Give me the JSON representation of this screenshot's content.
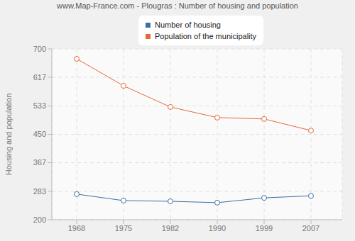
{
  "chart_data": {
    "type": "line",
    "title": "www.Map-France.com - Plougras : Number of housing and population",
    "y_label": "Housing and population",
    "categories": [
      "1968",
      "1975",
      "1982",
      "1990",
      "1999",
      "2007"
    ],
    "series": [
      {
        "name": "Number of housing",
        "color": "#3e6fa3",
        "values": [
          275,
          256,
          254,
          250,
          264,
          270
        ],
        "marker": "circle"
      },
      {
        "name": "Population of the municipality",
        "color": "#e2693a",
        "values": [
          671,
          592,
          530,
          499,
          495,
          461
        ],
        "marker": "circle"
      }
    ],
    "ylim": [
      200,
      700
    ],
    "yticks": [
      200,
      283,
      367,
      450,
      533,
      617,
      700
    ],
    "grid": true,
    "legend": "top"
  }
}
